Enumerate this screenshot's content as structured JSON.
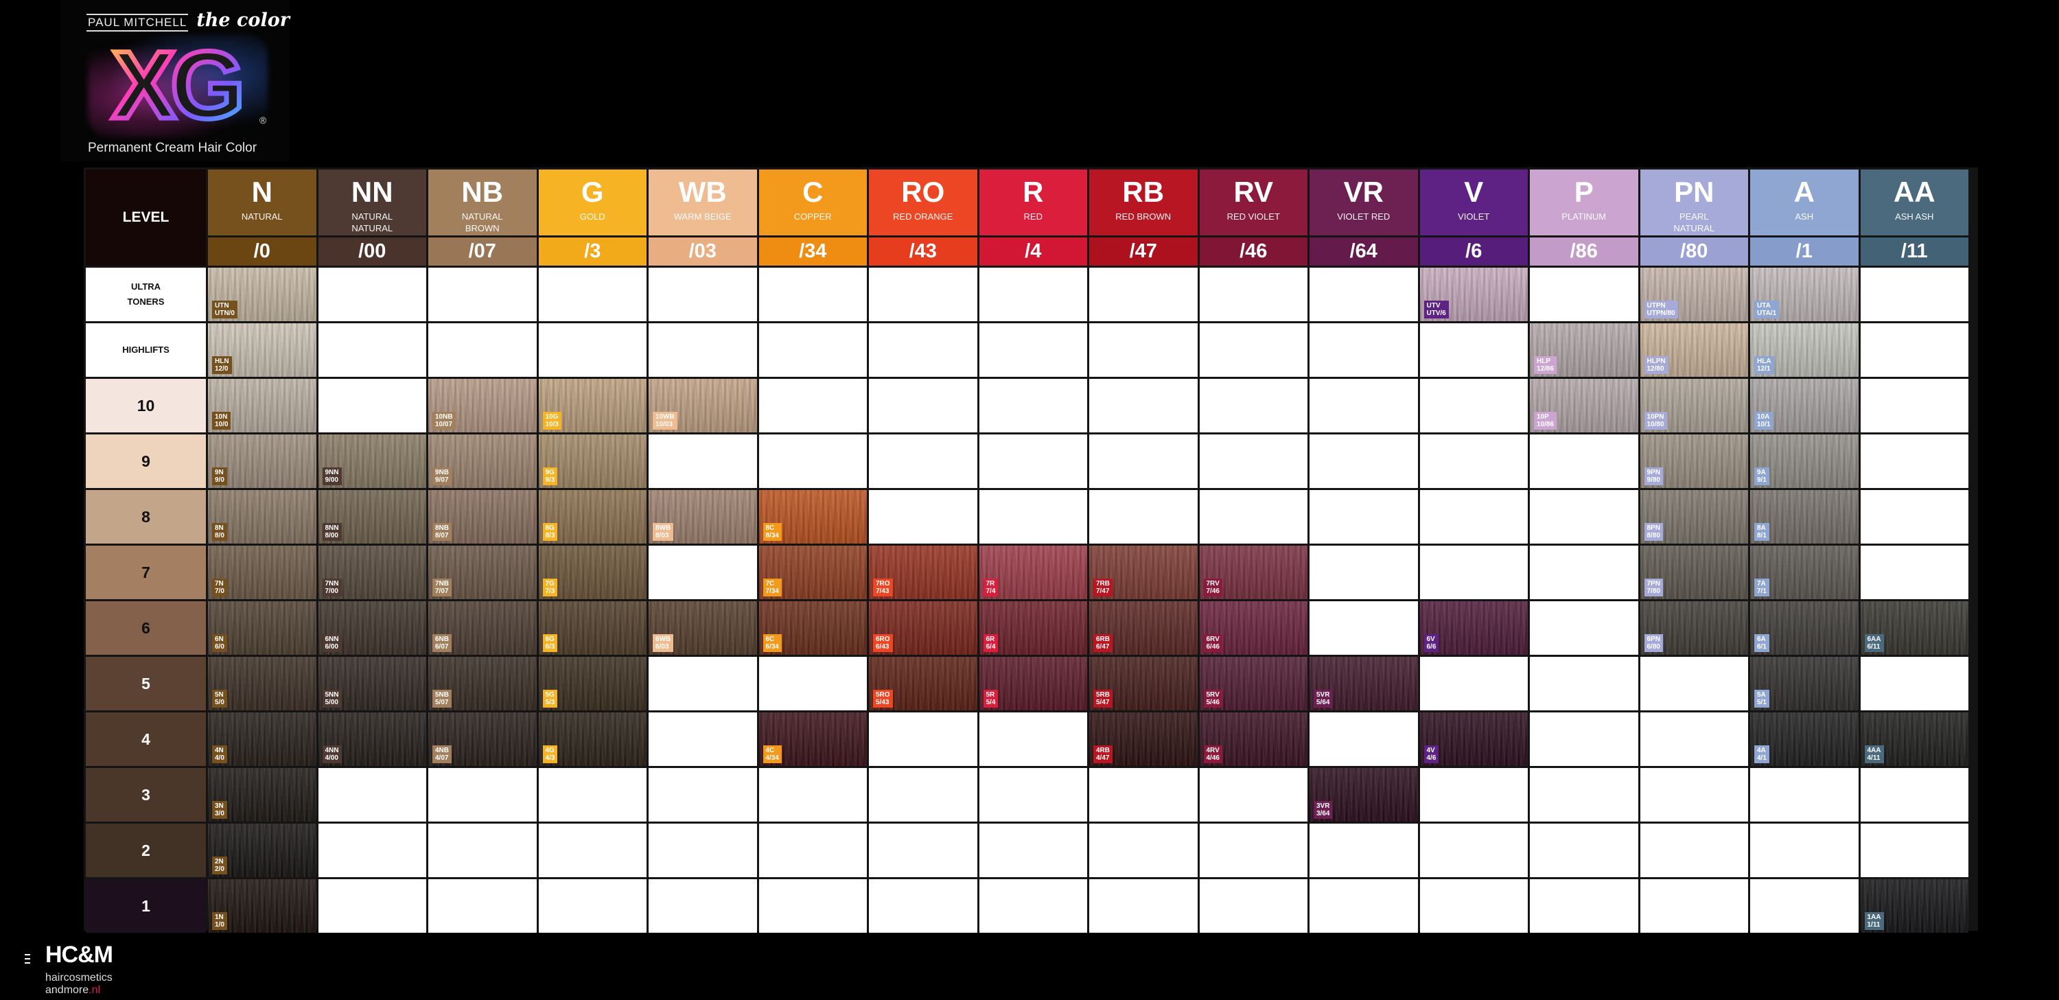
{
  "logo": {
    "brand": "PAUL MITCHELL",
    "product_line": "the color",
    "product": "XG",
    "trademark": "®",
    "subtitle": "Permanent Cream Hair Color"
  },
  "chart": {
    "corner_label": "LEVEL",
    "columns": [
      {
        "code": "N",
        "name": "NATURAL",
        "num": "/0",
        "color": "#76501d",
        "sub_color": "#6b4612"
      },
      {
        "code": "NN",
        "name": "NATURAL NATURAL",
        "num": "/00",
        "color": "#4f3a33",
        "sub_color": "#4a332b"
      },
      {
        "code": "NB",
        "name": "NATURAL BROWN",
        "num": "/07",
        "color": "#a2805e",
        "sub_color": "#997656"
      },
      {
        "code": "G",
        "name": "GOLD",
        "num": "/3",
        "color": "#f6b323",
        "sub_color": "#f2a91a"
      },
      {
        "code": "WB",
        "name": "WARM BEIGE",
        "num": "/03",
        "color": "#efbb91",
        "sub_color": "#e9ad82"
      },
      {
        "code": "C",
        "name": "COPPER",
        "num": "/34",
        "color": "#f3991c",
        "sub_color": "#ee8d12"
      },
      {
        "code": "RO",
        "name": "RED ORANGE",
        "num": "/43",
        "color": "#ed4624",
        "sub_color": "#e53d1d"
      },
      {
        "code": "R",
        "name": "RED",
        "num": "/4",
        "color": "#db1e3b",
        "sub_color": "#d11733"
      },
      {
        "code": "RB",
        "name": "RED BROWN",
        "num": "/47",
        "color": "#b81623",
        "sub_color": "#ad111e"
      },
      {
        "code": "RV",
        "name": "RED VIOLET",
        "num": "/46",
        "color": "#8b1a3c",
        "sub_color": "#811535"
      },
      {
        "code": "VR",
        "name": "VIOLET RED",
        "num": "/64",
        "color": "#6c2152",
        "sub_color": "#641b4b"
      },
      {
        "code": "V",
        "name": "VIOLET",
        "num": "/6",
        "color": "#5e2284",
        "sub_color": "#561d7b"
      },
      {
        "code": "P",
        "name": "PLATINUM",
        "num": "/86",
        "color": "#cba5d0",
        "sub_color": "#c39bc9"
      },
      {
        "code": "PN",
        "name": "PEARL NATURAL",
        "num": "/80",
        "color": "#a5aad9",
        "sub_color": "#9ca1d3"
      },
      {
        "code": "A",
        "name": "ASH",
        "num": "/1",
        "color": "#90a6d2",
        "sub_color": "#869dcb"
      },
      {
        "code": "AA",
        "name": "ASH ASH",
        "num": "/11",
        "color": "#4b6a7e",
        "sub_color": "#446276"
      }
    ],
    "rows": [
      {
        "label": "ULTRA TONERS",
        "bg": "#ffffff",
        "fg": "#111111",
        "size": "small",
        "cells": [
          {
            "col": 0,
            "code": "UTN",
            "ref": "UTN/0",
            "hair": "#c9bba6"
          },
          {
            "col": 11,
            "code": "UTV",
            "ref": "UTV/6",
            "hair": "#c9aec0"
          },
          {
            "col": 13,
            "code": "UTPN",
            "ref": "UTPN/80",
            "hair": "#c6b6ad"
          },
          {
            "col": 14,
            "code": "UTA",
            "ref": "UTA/1",
            "hair": "#c4bcbc"
          }
        ]
      },
      {
        "label": "HIGHLIFTS",
        "bg": "#ffffff",
        "fg": "#111111",
        "size": "small",
        "cells": [
          {
            "col": 0,
            "code": "HLN",
            "ref": "12/0",
            "hair": "#cfc6b8"
          },
          {
            "col": 12,
            "code": "HLP",
            "ref": "12/86",
            "hair": "#b7abac"
          },
          {
            "col": 13,
            "code": "HLPN",
            "ref": "12/80",
            "hair": "#cfb79e"
          },
          {
            "col": 14,
            "code": "HLA",
            "ref": "12/1",
            "hair": "#c6c6c0"
          }
        ]
      },
      {
        "label": "10",
        "bg": "#f4e6df",
        "fg": "#111111",
        "size": "big",
        "cells": [
          {
            "col": 0,
            "code": "10N",
            "ref": "10/0",
            "hair": "#bdb1a4"
          },
          {
            "col": 2,
            "code": "10NB",
            "ref": "10/07",
            "hair": "#b89a86"
          },
          {
            "col": 3,
            "code": "10G",
            "ref": "10/3",
            "hair": "#bfa27e"
          },
          {
            "col": 4,
            "code": "10WB",
            "ref": "10/03",
            "hair": "#c5a487"
          },
          {
            "col": 12,
            "code": "10P",
            "ref": "10/86",
            "hair": "#b6a9ab"
          },
          {
            "col": 13,
            "code": "10PN",
            "ref": "10/80",
            "hair": "#b1a79a"
          },
          {
            "col": 14,
            "code": "10A",
            "ref": "10/1",
            "hair": "#aaa6a5"
          }
        ]
      },
      {
        "label": "9",
        "bg": "#efd4bd",
        "fg": "#111111",
        "size": "big",
        "cells": [
          {
            "col": 0,
            "code": "9N",
            "ref": "9/0",
            "hair": "#a09080"
          },
          {
            "col": 1,
            "code": "9NN",
            "ref": "9/00",
            "hair": "#8a7c63"
          },
          {
            "col": 2,
            "code": "9NB",
            "ref": "9/07",
            "hair": "#a08670"
          },
          {
            "col": 3,
            "code": "9G",
            "ref": "9/3",
            "hair": "#a58b67"
          },
          {
            "col": 13,
            "code": "9PN",
            "ref": "9/80",
            "hair": "#9c9183"
          },
          {
            "col": 14,
            "code": "9A",
            "ref": "9/1",
            "hair": "#948f88"
          }
        ]
      },
      {
        "label": "8",
        "bg": "#c3a589",
        "fg": "#111111",
        "size": "big",
        "cells": [
          {
            "col": 0,
            "code": "8N",
            "ref": "8/0",
            "hair": "#8a7866"
          },
          {
            "col": 1,
            "code": "8NN",
            "ref": "8/00",
            "hair": "#70624d"
          },
          {
            "col": 2,
            "code": "8NB",
            "ref": "8/07",
            "hair": "#8a6f5d"
          },
          {
            "col": 3,
            "code": "8G",
            "ref": "8/3",
            "hair": "#8d7150"
          },
          {
            "col": 4,
            "code": "8WB",
            "ref": "8/03",
            "hair": "#a0826f"
          },
          {
            "col": 5,
            "code": "8C",
            "ref": "8/34",
            "hair": "#c0531e"
          },
          {
            "col": 13,
            "code": "8PN",
            "ref": "8/80",
            "hair": "#7e776d"
          },
          {
            "col": 14,
            "code": "8A",
            "ref": "8/1",
            "hair": "#77716a"
          }
        ]
      },
      {
        "label": "7",
        "bg": "#a57f62",
        "fg": "#111111",
        "size": "big",
        "cells": [
          {
            "col": 0,
            "code": "7N",
            "ref": "7/0",
            "hair": "#6d5a47"
          },
          {
            "col": 1,
            "code": "7NN",
            "ref": "7/00",
            "hair": "#55483a"
          },
          {
            "col": 2,
            "code": "7NB",
            "ref": "7/07",
            "hair": "#6a5646"
          },
          {
            "col": 3,
            "code": "7G",
            "ref": "7/3",
            "hair": "#6d5538"
          },
          {
            "col": 5,
            "code": "7C",
            "ref": "7/34",
            "hair": "#913c1f"
          },
          {
            "col": 6,
            "code": "7RO",
            "ref": "7/43",
            "hair": "#98301e"
          },
          {
            "col": 7,
            "code": "7R",
            "ref": "7/4",
            "hair": "#9e3a48"
          },
          {
            "col": 8,
            "code": "7RB",
            "ref": "7/47",
            "hair": "#7e3a31"
          },
          {
            "col": 9,
            "code": "7RV",
            "ref": "7/46",
            "hair": "#7b2e3f"
          },
          {
            "col": 13,
            "code": "7PN",
            "ref": "7/80",
            "hair": "#5e584f"
          },
          {
            "col": 14,
            "code": "7A",
            "ref": "7/1",
            "hair": "#5d5853"
          }
        ]
      },
      {
        "label": "6",
        "bg": "#83614a",
        "fg": "#111111",
        "size": "big",
        "cells": [
          {
            "col": 0,
            "code": "6N",
            "ref": "6/0",
            "hair": "#4f3f31"
          },
          {
            "col": 1,
            "code": "6NN",
            "ref": "6/00",
            "hair": "#3d3129"
          },
          {
            "col": 2,
            "code": "6NB",
            "ref": "6/07",
            "hair": "#4b3b30"
          },
          {
            "col": 3,
            "code": "6G",
            "ref": "6/3",
            "hair": "#4f3c27"
          },
          {
            "col": 4,
            "code": "6WB",
            "ref": "6/03",
            "hair": "#553d2c"
          },
          {
            "col": 5,
            "code": "6C",
            "ref": "6/34",
            "hair": "#6b2c19"
          },
          {
            "col": 6,
            "code": "6RO",
            "ref": "6/43",
            "hair": "#7a2218"
          },
          {
            "col": 7,
            "code": "6R",
            "ref": "6/4",
            "hair": "#6d1d28"
          },
          {
            "col": 8,
            "code": "6RB",
            "ref": "6/47",
            "hair": "#5b2522"
          },
          {
            "col": 9,
            "code": "6RV",
            "ref": "6/46",
            "hair": "#6a1f3a"
          },
          {
            "col": 11,
            "code": "6V",
            "ref": "6/6",
            "hair": "#4e1838"
          },
          {
            "col": 13,
            "code": "6PN",
            "ref": "6/80",
            "hair": "#403b36"
          },
          {
            "col": 14,
            "code": "6A",
            "ref": "6/1",
            "hair": "#3e3b38"
          },
          {
            "col": 15,
            "code": "6AA",
            "ref": "6/11",
            "hair": "#36352f"
          }
        ]
      },
      {
        "label": "5",
        "bg": "#5b4232",
        "fg": "#ffffff",
        "size": "big",
        "cells": [
          {
            "col": 0,
            "code": "5N",
            "ref": "5/0",
            "hair": "#3a2d23"
          },
          {
            "col": 1,
            "code": "5NN",
            "ref": "5/00",
            "hair": "#2f2620"
          },
          {
            "col": 2,
            "code": "5NB",
            "ref": "5/07",
            "hair": "#372a22"
          },
          {
            "col": 3,
            "code": "5G",
            "ref": "5/3",
            "hair": "#3a2c1d"
          },
          {
            "col": 6,
            "code": "5RO",
            "ref": "5/43",
            "hair": "#5c1f12"
          },
          {
            "col": 7,
            "code": "5R",
            "ref": "5/4",
            "hair": "#5b1627"
          },
          {
            "col": 8,
            "code": "5RB",
            "ref": "5/47",
            "hair": "#441b18"
          },
          {
            "col": 9,
            "code": "5RV",
            "ref": "5/46",
            "hair": "#4f1830"
          },
          {
            "col": 10,
            "code": "5VR",
            "ref": "5/64",
            "hair": "#3f1628"
          },
          {
            "col": 14,
            "code": "5A",
            "ref": "5/1",
            "hair": "#2e2c2b"
          }
        ]
      },
      {
        "label": "4",
        "bg": "#4f3a2c",
        "fg": "#ffffff",
        "size": "big",
        "cells": [
          {
            "col": 0,
            "code": "4N",
            "ref": "4/0",
            "hair": "#241d18"
          },
          {
            "col": 1,
            "code": "4NN",
            "ref": "4/00",
            "hair": "#211b17"
          },
          {
            "col": 2,
            "code": "4NB",
            "ref": "4/07",
            "hair": "#261d18"
          },
          {
            "col": 3,
            "code": "4G",
            "ref": "4/3",
            "hair": "#2a2016"
          },
          {
            "col": 5,
            "code": "4C",
            "ref": "4/34",
            "hair": "#3a1017"
          },
          {
            "col": 8,
            "code": "4RB",
            "ref": "4/47",
            "hair": "#2c0d0d"
          },
          {
            "col": 9,
            "code": "4RV",
            "ref": "4/46",
            "hair": "#3a0f20"
          },
          {
            "col": 11,
            "code": "4V",
            "ref": "4/6",
            "hair": "#2a0c1c"
          },
          {
            "col": 14,
            "code": "4A",
            "ref": "4/1",
            "hair": "#1e1d1d"
          },
          {
            "col": 15,
            "code": "4AA",
            "ref": "4/11",
            "hair": "#1c1c1b"
          }
        ]
      },
      {
        "label": "3",
        "bg": "#4a372a",
        "fg": "#ffffff",
        "size": "big",
        "cells": [
          {
            "col": 0,
            "code": "3N",
            "ref": "3/0",
            "hair": "#1a1613"
          },
          {
            "col": 10,
            "code": "3VR",
            "ref": "3/64",
            "hair": "#2a0b1a"
          }
        ]
      },
      {
        "label": "2",
        "bg": "#423226",
        "fg": "#ffffff",
        "size": "big",
        "cells": [
          {
            "col": 0,
            "code": "2N",
            "ref": "2/0",
            "hair": "#151210"
          }
        ]
      },
      {
        "label": "1",
        "bg": "#1d0f1d",
        "fg": "#ffffff",
        "size": "big",
        "cells": [
          {
            "col": 0,
            "code": "1N",
            "ref": "1/0",
            "hair": "#1a0f0b"
          },
          {
            "col": 15,
            "code": "1AA",
            "ref": "1/11",
            "hair": "#121214"
          }
        ]
      }
    ]
  },
  "footer": {
    "name": "HC&M",
    "line1": "haircosmetics",
    "line2_prefix": "andmore",
    "line2_suffix": ".nl"
  }
}
